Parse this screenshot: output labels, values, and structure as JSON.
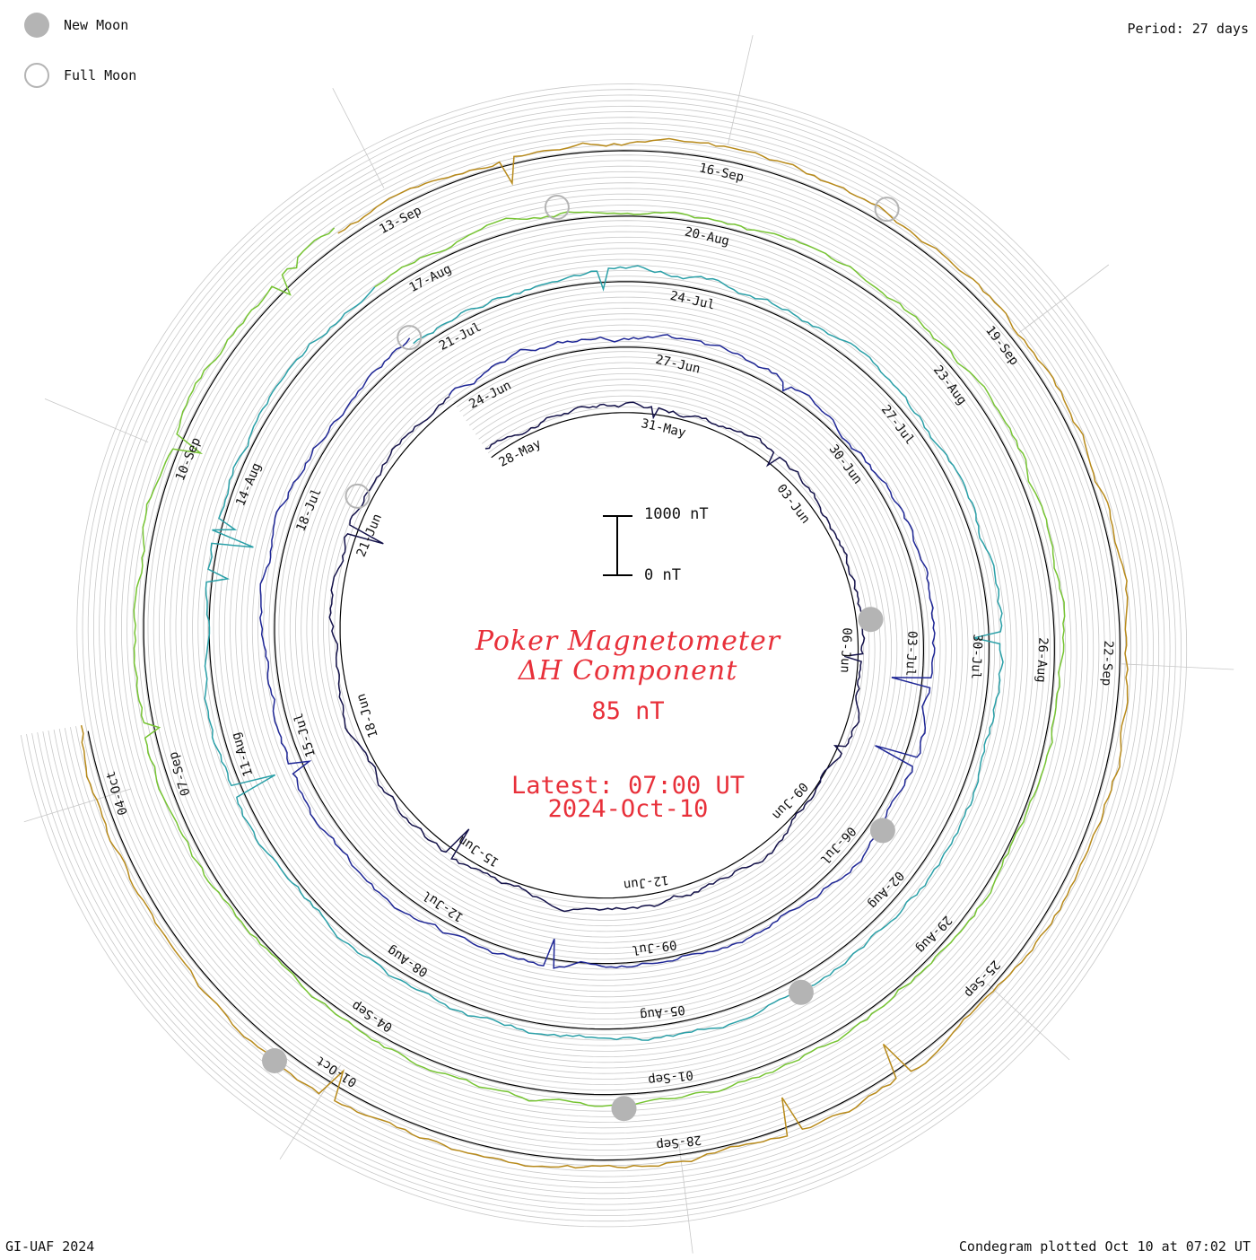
{
  "legend": {
    "new_moon": {
      "label": "New Moon",
      "color": "#b4b4b4"
    },
    "full_moon": {
      "label": "Full Moon",
      "color": "#b4b4b4"
    }
  },
  "period": "Period: 27 days",
  "footer_left": "GI-UAF 2024",
  "footer_right": "Condegram plotted Oct 10 at 07:02 UT",
  "title": {
    "line1": "Poker Magnetometer",
    "line2": "ΔH Component",
    "value": "85 nT",
    "latest_time": "Latest: 07:00 UT",
    "latest_date": "2024-Oct-10",
    "color": "#e8303a"
  },
  "scale_bar": {
    "top_label": "1000 nT",
    "bottom_label": "0 nT"
  },
  "chart_data": {
    "type": "line",
    "title": "Poker Magnetometer ΔH Component",
    "subtitle": "85 nT",
    "period_days": 27,
    "latest": "2024-Oct-10 07:00 UT",
    "rotations": [
      {
        "color": "#14124a",
        "labels": [
          "28-May",
          "31-May",
          "03-Jun",
          "06-Jun",
          "09-Jun",
          "12-Jun",
          "15-Jun",
          "18-Jun",
          "21-Jun"
        ]
      },
      {
        "color": "#1f2796",
        "labels": [
          "24-Jun",
          "27-Jun",
          "30-Jun",
          "03-Jul",
          "06-Jul",
          "09-Jul",
          "12-Jul",
          "15-Jul",
          "18-Jul"
        ]
      },
      {
        "color": "#2aa0a8",
        "labels": [
          "21-Jul",
          "24-Jul",
          "27-Jul",
          "30-Jul",
          "02-Aug",
          "05-Aug",
          "08-Aug",
          "11-Aug",
          "14-Aug"
        ]
      },
      {
        "color": "#76c432",
        "labels": [
          "17-Aug",
          "20-Aug",
          "23-Aug",
          "26-Aug",
          "29-Aug",
          "01-Sep",
          "04-Sep",
          "07-Sep",
          "10-Sep"
        ]
      },
      {
        "color": "#b88a1a",
        "labels": [
          "13-Sep",
          "16-Sep",
          "19-Sep",
          "22-Sep",
          "25-Sep",
          "28-Sep",
          "01-Oct",
          "04-Oct"
        ]
      }
    ],
    "last_segment_color": "#c0161c",
    "new_moon_dates": [
      "06-Jun",
      "06-Jul",
      "04-Aug",
      "02-Sep",
      "02-Oct"
    ],
    "full_moon_dates": [
      "22-Jun",
      "21-Jul",
      "19-Aug",
      "18-Sep"
    ],
    "grid": true
  }
}
